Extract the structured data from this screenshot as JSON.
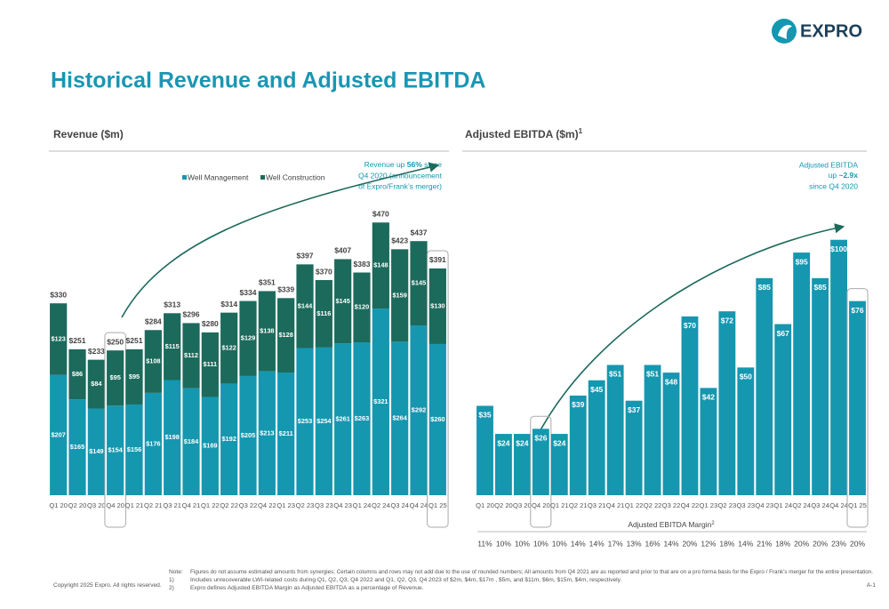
{
  "header": {
    "title": "Historical Revenue and Adjusted EBITDA",
    "logo": "EXPRO"
  },
  "chart_data": [
    {
      "type": "stacked-bar",
      "title": "Revenue ($m)",
      "categories": [
        "Q1 20",
        "Q2 20",
        "Q3 20",
        "Q4 20",
        "Q1 21",
        "Q2 21",
        "Q3 21",
        "Q4 21",
        "Q1 22",
        "Q2 22",
        "Q3 22",
        "Q4 22",
        "Q1 23",
        "Q2 23",
        "Q3 23",
        "Q4 23",
        "Q1 24",
        "Q2 24",
        "Q3 24",
        "Q4 24",
        "Q1 25"
      ],
      "series": [
        {
          "name": "Well Management",
          "color": "#1597b0",
          "values": [
            207,
            165,
            149,
            154,
            156,
            176,
            198,
            184,
            169,
            192,
            205,
            213,
            211,
            253,
            254,
            261,
            263,
            321,
            264,
            292,
            260
          ],
          "value_labels": [
            "$207",
            "$165",
            "$149",
            "$154",
            "$156",
            "$176",
            "$198",
            "$184",
            "$169",
            "$192",
            "$205",
            "$213",
            "$211",
            "$253",
            "$254",
            "$261",
            "$263",
            "$321",
            "$264",
            "$292",
            "$260"
          ]
        },
        {
          "name": "Well Construction",
          "color": "#1c6a5c",
          "values": [
            123,
            86,
            84,
            95,
            95,
            108,
            115,
            112,
            111,
            122,
            129,
            138,
            128,
            144,
            116,
            145,
            120,
            148,
            159,
            145,
            130
          ],
          "value_labels": [
            "$123",
            "$86",
            "$84",
            "$95",
            "$95",
            "$108",
            "$115",
            "$112",
            "$111",
            "$122",
            "$129",
            "$138",
            "$128",
            "$144",
            "$116",
            "$145",
            "$120",
            "$148",
            "$159",
            "$145",
            "$130"
          ]
        }
      ],
      "totals": [
        "$330",
        "$251",
        "$233",
        "$250",
        "$251",
        "$284",
        "$313",
        "$296",
        "$280",
        "$314",
        "$334",
        "$351",
        "$339",
        "$397",
        "$370",
        "$407",
        "$383",
        "$470",
        "$423",
        "$437",
        "$391"
      ],
      "ylim": [
        0,
        500
      ],
      "legend": "top",
      "annotation": [
        "Revenue up ",
        "56%",
        " since",
        "Q4 2020 (announcement",
        "of Expro/Frank’s merger)"
      ]
    },
    {
      "type": "bar",
      "title": "Adjusted EBITDA ($m)",
      "title_sup": "1",
      "color": "#1597b0",
      "categories": [
        "Q1 20",
        "Q2 20",
        "Q3 20",
        "Q4 20",
        "Q1 21",
        "Q2 21",
        "Q3 21",
        "Q4 21",
        "Q1 22",
        "Q2 22",
        "Q3 22",
        "Q4 22",
        "Q1 23",
        "Q2 23",
        "Q3 23",
        "Q4 23",
        "Q1 24",
        "Q2 24",
        "Q3 24",
        "Q4 24",
        "Q1 25"
      ],
      "values": [
        35,
        24,
        24,
        26,
        24,
        39,
        45,
        51,
        37,
        51,
        48,
        70,
        42,
        72,
        50,
        85,
        67,
        95,
        85,
        100,
        76
      ],
      "value_labels": [
        "$35",
        "$24",
        "$24",
        "$26",
        "$24",
        "$39",
        "$45",
        "$51",
        "$37",
        "$51",
        "$48",
        "$70",
        "$42",
        "$72",
        "$50",
        "$85",
        "$67",
        "$95",
        "$85",
        "$100",
        "$76"
      ],
      "ylim": [
        0,
        110
      ],
      "annotation": [
        "Adjusted EBITDA",
        "up ",
        "~2.9x",
        "since Q4 2020"
      ],
      "margin_label": "Adjusted EBITDA Margin",
      "margin_label_sup": "2",
      "margins": [
        "11%",
        "10%",
        "10%",
        "10%",
        "10%",
        "14%",
        "14%",
        "17%",
        "13%",
        "16%",
        "14%",
        "20%",
        "12%",
        "18%",
        "14%",
        "21%",
        "18%",
        "20%",
        "20%",
        "23%",
        "20%"
      ]
    }
  ],
  "footer": {
    "note_label": "Note:",
    "notes": [
      {
        "marker": "",
        "text": "Figures do not assume estimated amounts from synergies; Certain columns and rows may not add due to the use of rounded numbers; All amounts from Q4 2021 are as reported and prior to that are on a pro forma basis for the Expro / Frank’s merger for the entire presentation."
      },
      {
        "marker": "1)",
        "text": "Includes unrecoverable LWI-related costs during Q1, Q2, Q3, Q4 2022 and Q1, Q2, Q3, Q4 2023 of $2m, $4m, $17m , $5m, and $11m, $6m, $15m, $4m, respectively."
      },
      {
        "marker": "2)",
        "text": "Expro defines Adjusted EBITDA Margin as Adjusted EBITDA as a percentage of Revenue."
      }
    ],
    "copyright": "Copyright 2025 Expro. All rights reserved.",
    "page": "A-1"
  }
}
